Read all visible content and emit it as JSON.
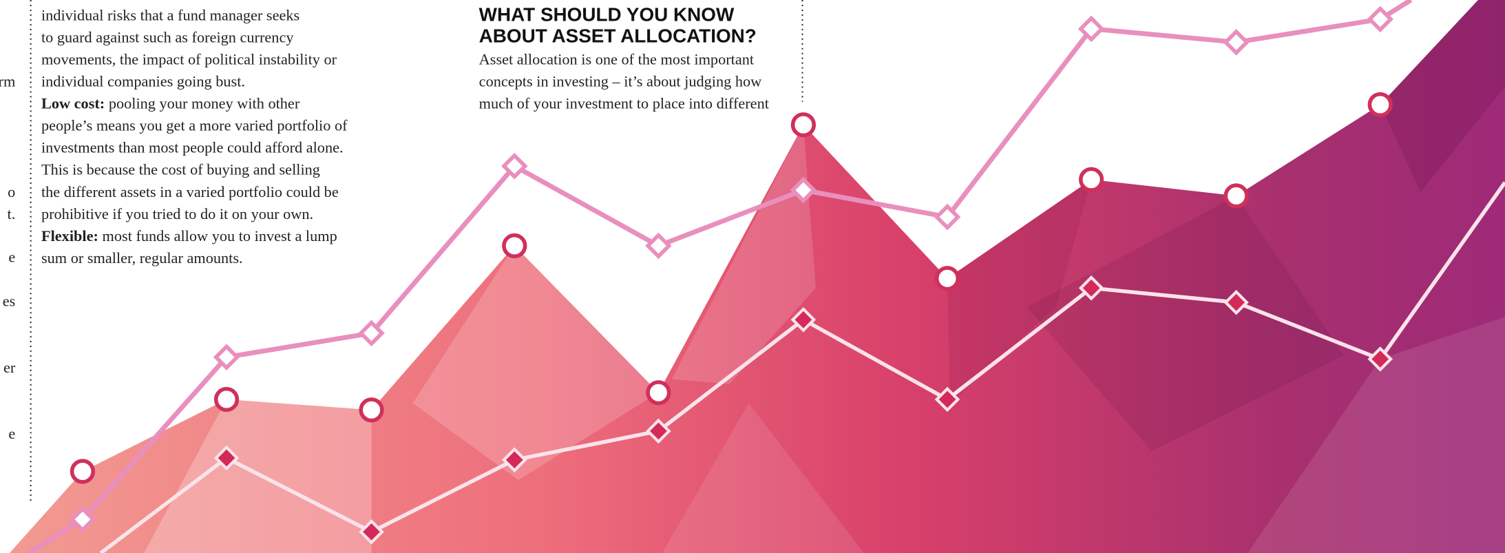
{
  "margin_fragments": [
    "rm",
    "o",
    "t.",
    "e",
    "es",
    "er",
    "e"
  ],
  "column_1": {
    "lines": [
      {
        "text": "individual risks that a fund manager seeks"
      },
      {
        "text": "to guard against such as foreign currency"
      },
      {
        "text": "movements, the impact of political instability or"
      },
      {
        "text": "individual companies going bust."
      },
      {
        "bold": "Low cost:",
        "text": " pooling your money with other"
      },
      {
        "text": "people’s means you get a more varied portfolio of"
      },
      {
        "text": "investments than most people could afford alone."
      },
      {
        "text": "This is because the cost of buying and selling"
      },
      {
        "text": "the different assets in a varied portfolio could be"
      },
      {
        "text": "prohibitive if you tried to do it on your own."
      },
      {
        "bold": "Flexible:",
        "text": " most funds allow you to invest a lump"
      },
      {
        "text": "sum or smaller, regular amounts."
      }
    ]
  },
  "column_2": {
    "heading": [
      "WHAT SHOULD YOU KNOW",
      "ABOUT ASSET ALLOCATION?"
    ],
    "lines": [
      "Asset allocation is one of the most important",
      "concepts in investing – it’s about judging how",
      "much of your investment to place into different"
    ]
  }
}
